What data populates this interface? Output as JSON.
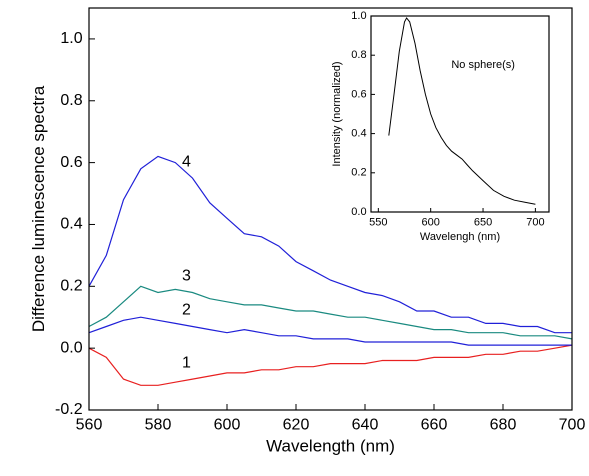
{
  "chart_data": [
    {
      "type": "line",
      "xlabel": "Wavelength (nm)",
      "ylabel": "Difference luminescence spectra",
      "x": [
        560,
        565,
        570,
        575,
        580,
        585,
        590,
        595,
        600,
        605,
        610,
        615,
        620,
        625,
        630,
        635,
        640,
        645,
        650,
        655,
        660,
        665,
        670,
        675,
        680,
        685,
        690,
        695,
        700
      ],
      "series": [
        {
          "name": "1",
          "color": "#e82020",
          "values": [
            0.0,
            -0.03,
            -0.1,
            -0.12,
            -0.12,
            -0.11,
            -0.1,
            -0.09,
            -0.08,
            -0.08,
            -0.07,
            -0.07,
            -0.06,
            -0.06,
            -0.05,
            -0.05,
            -0.05,
            -0.04,
            -0.04,
            -0.04,
            -0.03,
            -0.03,
            -0.03,
            -0.02,
            -0.02,
            -0.01,
            -0.01,
            0.0,
            0.01
          ]
        },
        {
          "name": "2",
          "color": "#2020d8",
          "values": [
            0.05,
            0.07,
            0.09,
            0.1,
            0.09,
            0.08,
            0.07,
            0.06,
            0.05,
            0.06,
            0.05,
            0.04,
            0.04,
            0.03,
            0.03,
            0.03,
            0.02,
            0.02,
            0.02,
            0.02,
            0.02,
            0.02,
            0.01,
            0.01,
            0.01,
            0.01,
            0.01,
            0.01,
            0.01
          ]
        },
        {
          "name": "3",
          "color": "#1a8a80",
          "values": [
            0.07,
            0.1,
            0.15,
            0.2,
            0.18,
            0.19,
            0.18,
            0.16,
            0.15,
            0.14,
            0.14,
            0.13,
            0.12,
            0.12,
            0.11,
            0.1,
            0.1,
            0.09,
            0.08,
            0.07,
            0.06,
            0.06,
            0.05,
            0.05,
            0.05,
            0.04,
            0.04,
            0.04,
            0.03
          ]
        },
        {
          "name": "4",
          "color": "#2020d8",
          "values": [
            0.2,
            0.3,
            0.48,
            0.58,
            0.62,
            0.6,
            0.55,
            0.47,
            0.42,
            0.37,
            0.36,
            0.33,
            0.28,
            0.25,
            0.22,
            0.2,
            0.18,
            0.17,
            0.15,
            0.12,
            0.12,
            0.1,
            0.1,
            0.08,
            0.08,
            0.07,
            0.07,
            0.05,
            0.05
          ]
        }
      ],
      "xlim": [
        560,
        700
      ],
      "xticks": [
        560,
        580,
        600,
        620,
        640,
        660,
        680,
        700
      ],
      "ylim": [
        -0.2,
        1.1
      ],
      "yticks": [
        -0.2,
        {
          "value": 0,
          "label": "0.0"
        },
        0.2,
        0.4,
        0.6,
        0.8,
        {
          "value": 1,
          "label": "1.0"
        }
      ]
    },
    {
      "type": "line",
      "xlabel": "Wavelengh (nm)",
      "ylabel": "Intensity (normalized)",
      "annotation": "No sphere(s)",
      "x": [
        560,
        565,
        570,
        575,
        577,
        580,
        585,
        590,
        595,
        600,
        605,
        610,
        615,
        620,
        625,
        630,
        635,
        640,
        650,
        660,
        670,
        680,
        690,
        700
      ],
      "series": [
        {
          "color": "#000000",
          "values": [
            0.39,
            0.6,
            0.82,
            0.97,
            0.99,
            0.97,
            0.86,
            0.72,
            0.6,
            0.5,
            0.43,
            0.38,
            0.34,
            0.31,
            0.29,
            0.27,
            0.24,
            0.21,
            0.16,
            0.11,
            0.08,
            0.06,
            0.05,
            0.04
          ]
        }
      ],
      "xlim": [
        543,
        713
      ],
      "xticks": [
        550,
        600,
        650,
        700
      ],
      "ylim": [
        0,
        1.0
      ],
      "yticks": [
        {
          "value": 0,
          "label": "0.0"
        },
        0.2,
        0.4,
        0.6,
        0.8,
        {
          "value": 1,
          "label": "1.0"
        }
      ]
    }
  ]
}
